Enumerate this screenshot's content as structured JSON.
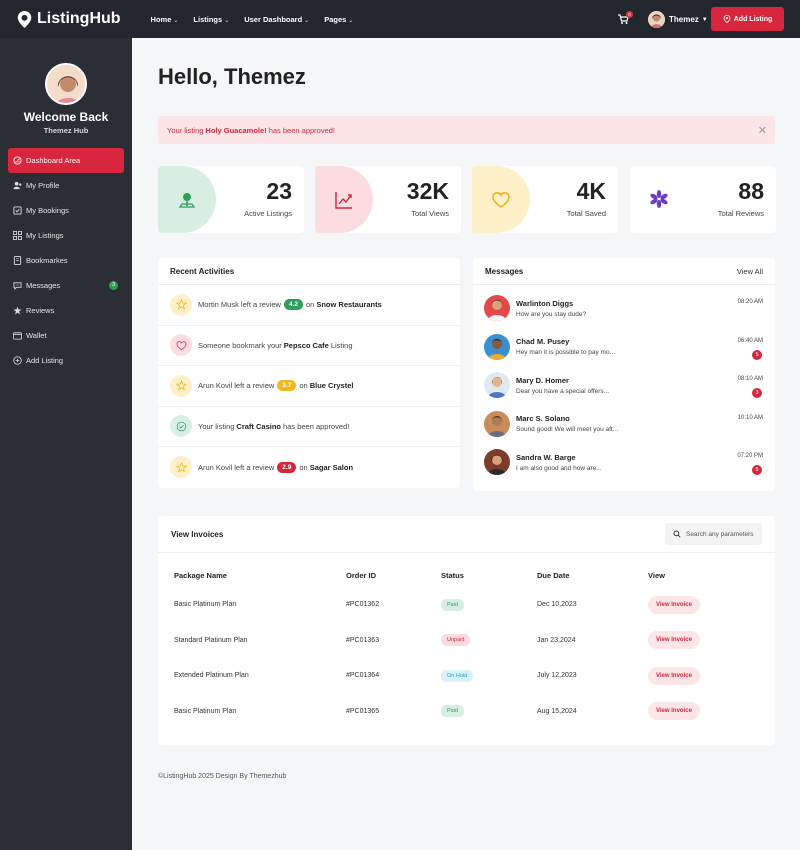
{
  "brand": {
    "name": "ListingHub"
  },
  "nav_menu": [
    {
      "label": "Home"
    },
    {
      "label": "Listings"
    },
    {
      "label": "User Dashboard"
    },
    {
      "label": "Pages"
    }
  ],
  "header": {
    "cart_count": "0",
    "user_name": "Themez",
    "add_listing_label": "Add Listing"
  },
  "sidebar": {
    "welcome": "Welcome Back",
    "user_name": "Themez Hub",
    "items": [
      {
        "label": "Dashboard Area",
        "icon": "dashboard-icon"
      },
      {
        "label": "My Profile",
        "icon": "user-icon"
      },
      {
        "label": "My Bookings",
        "icon": "bookings-icon"
      },
      {
        "label": "My Listings",
        "icon": "listings-icon"
      },
      {
        "label": "Bookmarkes",
        "icon": "bookmark-icon"
      },
      {
        "label": "Messages",
        "icon": "chat-icon",
        "badge": "3"
      },
      {
        "label": "Reviews",
        "icon": "star-icon"
      },
      {
        "label": "Wallet",
        "icon": "wallet-icon"
      },
      {
        "label": "Add Listing",
        "icon": "plus-circle-icon"
      }
    ]
  },
  "page_title": "Hello, Themez",
  "alert": {
    "prefix": "Your listing",
    "highlight": "Holy Guacamole!",
    "suffix": "has been approved!"
  },
  "stats": [
    {
      "value": "23",
      "label": "Active Listings",
      "icon": "location-pin-icon",
      "color": "#d9eee3"
    },
    {
      "value": "32K",
      "label": "Total Views",
      "icon": "chart-line-icon",
      "color": "#fbdde0"
    },
    {
      "value": "4K",
      "label": "Total Saved",
      "icon": "heart-icon",
      "color": "#fdf0c9"
    },
    {
      "value": "88",
      "label": "Total Reviews",
      "icon": "star-burst-icon",
      "color": "#ffffff"
    }
  ],
  "activities": {
    "title": "Recent Activities",
    "items": [
      {
        "before": "Mortin Musk left a review",
        "pill": "4.2",
        "mid": "on",
        "bold": "Snow Restaurants",
        "after": ""
      },
      {
        "before": "Someone bookmark your",
        "pill": "",
        "mid": "",
        "bold": "Pepsco Cafe",
        "after": "Listing"
      },
      {
        "before": "Arun Kovil left a review",
        "pill": "3.7",
        "mid": "on",
        "bold": "Blue Crystel",
        "after": ""
      },
      {
        "before": "Your listing",
        "pill": "",
        "mid": "",
        "bold": "Craft Casino",
        "after": "has been approved!"
      },
      {
        "before": "Arun Kovil left a review",
        "pill": "2.9",
        "mid": "on",
        "bold": "Sagar Salon",
        "after": ""
      }
    ]
  },
  "messages": {
    "title": "Messages",
    "view_all": "View All",
    "items": [
      {
        "name": "Warlinton Diggs",
        "text": "How are you stay dude?",
        "time": "08:20 AM",
        "badge": ""
      },
      {
        "name": "Chad M. Pusey",
        "text": "Hey man it is possible to pay mo...",
        "time": "06:40 AM",
        "badge": "5"
      },
      {
        "name": "Mary D. Homer",
        "text": "Dear you have a special offers...",
        "time": "08:10 AM",
        "badge": "3"
      },
      {
        "name": "Marc S. Solano",
        "text": "Sound good! We will meet you aft...",
        "time": "10:10 AM",
        "badge": ""
      },
      {
        "name": "Sandra W. Barge",
        "text": "I am also good and how are...",
        "time": "07:20 PM",
        "badge": "5"
      }
    ]
  },
  "invoices": {
    "title": "View Invoices",
    "search_placeholder": "Search any parameters",
    "columns": [
      "Package Name",
      "Order ID",
      "Status",
      "Due Date",
      "View"
    ],
    "rows": [
      {
        "package": "Basic Platinum Plan",
        "order": "#PC01362",
        "status": "Paid",
        "due": "Dec 10,2023",
        "view": "View Invoice"
      },
      {
        "package": "Standard Platinum Plan",
        "order": "#PC01363",
        "status": "Unpaid",
        "due": "Jan 23,2024",
        "view": "View Invoice"
      },
      {
        "package": "Extended Platinum Plan",
        "order": "#PC01364",
        "status": "On Hold",
        "due": "July 12,2023",
        "view": "View Invoice"
      },
      {
        "package": "Basic Platinum Plan",
        "order": "#PC01365",
        "status": "Paid",
        "due": "Aug 15,2024",
        "view": "View Invoice"
      }
    ]
  },
  "footer": "©ListingHub 2025 Design By Themezhub",
  "colors": {
    "accent": "#d7263d",
    "sidebar": "#2b2e34",
    "topbar": "#23262d"
  }
}
